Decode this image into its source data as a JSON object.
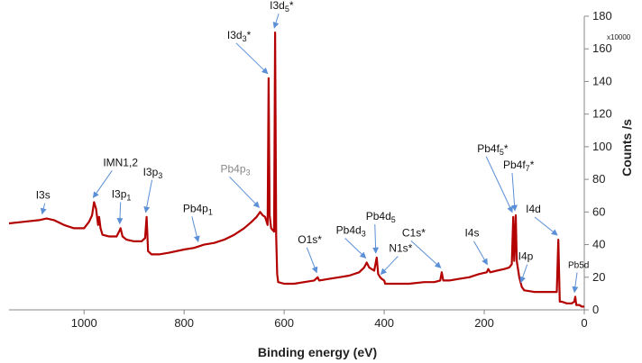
{
  "chart_data": {
    "type": "line",
    "xlabel": "Binding energy (eV)",
    "ylabel": "Counts /s",
    "y_multiplier": "x10000",
    "xlim": [
      1150,
      0
    ],
    "ylim": [
      0,
      180
    ],
    "x_ticks": [
      "1000",
      "800",
      "600",
      "400",
      "200",
      "0"
    ],
    "y_ticks": [
      "0",
      "20",
      "40",
      "60",
      "80",
      "100",
      "120",
      "140",
      "160",
      "180"
    ],
    "grid": false,
    "series": [
      {
        "color": "#b30000",
        "points": [
          [
            1150,
            53
          ],
          [
            1120,
            54
          ],
          [
            1090,
            55
          ],
          [
            1075,
            56
          ],
          [
            1060,
            55
          ],
          [
            1040,
            52
          ],
          [
            1020,
            50
          ],
          [
            1000,
            50
          ],
          [
            990,
            54
          ],
          [
            984,
            58
          ],
          [
            980,
            66
          ],
          [
            976,
            62
          ],
          [
            972,
            52
          ],
          [
            970,
            57
          ],
          [
            967,
            50
          ],
          [
            963,
            46
          ],
          [
            950,
            45
          ],
          [
            935,
            45
          ],
          [
            930,
            48
          ],
          [
            927,
            50
          ],
          [
            923,
            45
          ],
          [
            915,
            43
          ],
          [
            900,
            42
          ],
          [
            885,
            42
          ],
          [
            878,
            44
          ],
          [
            875,
            57
          ],
          [
            872,
            36
          ],
          [
            865,
            34
          ],
          [
            850,
            34
          ],
          [
            830,
            35
          ],
          [
            800,
            37
          ],
          [
            780,
            38
          ],
          [
            760,
            40
          ],
          [
            740,
            41
          ],
          [
            720,
            43
          ],
          [
            700,
            46
          ],
          [
            680,
            50
          ],
          [
            665,
            54
          ],
          [
            655,
            57
          ],
          [
            648,
            60
          ],
          [
            643,
            58
          ],
          [
            638,
            57
          ],
          [
            633,
            52
          ],
          [
            631,
            142
          ],
          [
            629,
            58
          ],
          [
            626,
            50
          ],
          [
            620,
            48
          ],
          [
            618,
            170
          ],
          [
            616,
            45
          ],
          [
            614,
            22
          ],
          [
            612,
            17
          ],
          [
            600,
            16
          ],
          [
            580,
            16
          ],
          [
            560,
            17
          ],
          [
            540,
            18
          ],
          [
            533,
            20
          ],
          [
            530,
            18
          ],
          [
            510,
            19
          ],
          [
            490,
            20
          ],
          [
            470,
            21
          ],
          [
            450,
            23
          ],
          [
            440,
            26
          ],
          [
            435,
            29
          ],
          [
            430,
            26
          ],
          [
            420,
            24
          ],
          [
            415,
            32
          ],
          [
            412,
            22
          ],
          [
            408,
            20
          ],
          [
            405,
            19
          ],
          [
            400,
            18
          ],
          [
            398,
            16
          ],
          [
            390,
            16
          ],
          [
            370,
            16
          ],
          [
            350,
            16
          ],
          [
            320,
            17
          ],
          [
            300,
            17
          ],
          [
            288,
            18
          ],
          [
            285,
            23
          ],
          [
            282,
            18
          ],
          [
            270,
            18
          ],
          [
            250,
            19
          ],
          [
            230,
            20
          ],
          [
            210,
            22
          ],
          [
            195,
            23
          ],
          [
            192,
            25
          ],
          [
            188,
            23
          ],
          [
            175,
            24
          ],
          [
            160,
            25
          ],
          [
            150,
            26
          ],
          [
            145,
            28
          ],
          [
            142,
            57
          ],
          [
            140,
            30
          ],
          [
            137,
            58
          ],
          [
            135,
            30
          ],
          [
            130,
            20
          ],
          [
            125,
            14
          ],
          [
            120,
            12
          ],
          [
            100,
            11
          ],
          [
            80,
            11
          ],
          [
            60,
            11
          ],
          [
            55,
            11
          ],
          [
            52,
            43
          ],
          [
            49,
            5
          ],
          [
            45,
            5
          ],
          [
            35,
            4
          ],
          [
            25,
            4
          ],
          [
            20,
            5
          ],
          [
            18,
            8
          ],
          [
            16,
            3
          ],
          [
            10,
            3
          ],
          [
            5,
            2
          ],
          [
            0,
            2
          ]
        ]
      }
    ],
    "annotations": [
      {
        "label": "I3s",
        "x": 1082,
        "y": 56
      },
      {
        "label": "IMN1,2",
        "x": 980,
        "y": 66
      },
      {
        "label": "I3p1",
        "base": "I3p",
        "sub": "1",
        "x": 927,
        "y": 50
      },
      {
        "label": "I3p3",
        "base": "I3p",
        "sub": "3",
        "x": 875,
        "y": 57
      },
      {
        "label": "Pb4p1",
        "base": "Pb4p",
        "sub": "1",
        "x": 770,
        "y": 39
      },
      {
        "label": "Pb4p3",
        "base": "Pb4p",
        "sub": "3",
        "x": 648,
        "y": 60,
        "gray": true
      },
      {
        "label": "I3d3*",
        "base": "I3d",
        "sub": "3",
        "suffix": "*",
        "x": 631,
        "y": 142
      },
      {
        "label": "I3d5*",
        "base": "I3d",
        "sub": "5",
        "suffix": "*",
        "x": 618,
        "y": 170
      },
      {
        "label": "O1s*",
        "x": 533,
        "y": 20
      },
      {
        "label": "Pb4d3",
        "base": "Pb4d",
        "sub": "3",
        "x": 435,
        "y": 29
      },
      {
        "label": "Pb4d5",
        "base": "Pb4d",
        "sub": "5",
        "x": 415,
        "y": 32
      },
      {
        "label": "N1s*",
        "x": 405,
        "y": 19
      },
      {
        "label": "C1s*",
        "x": 285,
        "y": 23
      },
      {
        "label": "I4s",
        "x": 192,
        "y": 25
      },
      {
        "label": "Pb4f5*",
        "base": "Pb4f",
        "sub": "5",
        "suffix": "*",
        "x": 142,
        "y": 57
      },
      {
        "label": "Pb4f7*",
        "base": "Pb4f",
        "sub": "7",
        "suffix": "*",
        "x": 137,
        "y": 58
      },
      {
        "label": "I4p",
        "x": 125,
        "y": 14
      },
      {
        "label": "I4d",
        "x": 52,
        "y": 43
      },
      {
        "label": "Pb5d",
        "x": 18,
        "y": 8,
        "small": true
      }
    ]
  }
}
